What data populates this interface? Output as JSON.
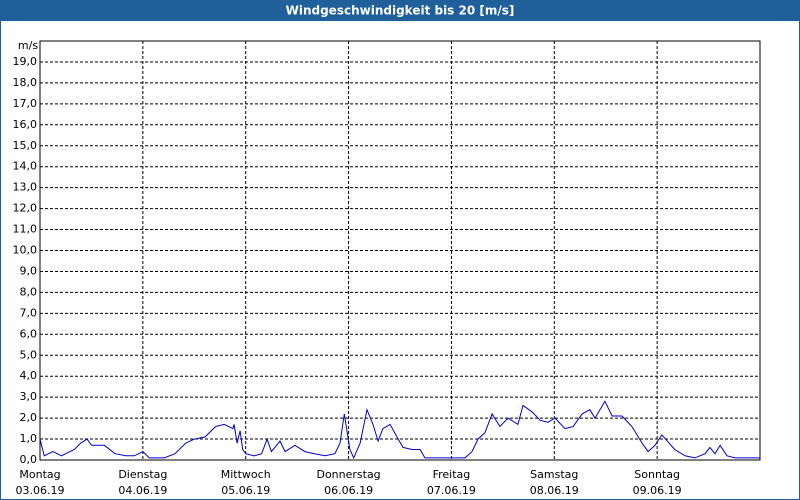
{
  "chart_data": {
    "type": "line",
    "title": "Windgeschwindigkeit bis 20 [m/s]",
    "y_label": "m/s",
    "xlim": [
      0,
      168
    ],
    "ylim": [
      0,
      20
    ],
    "xticks": [
      {
        "value": 0,
        "label": "Montag",
        "date": "03.06.19"
      },
      {
        "value": 24,
        "label": "Dienstag",
        "date": "04.06.19"
      },
      {
        "value": 48,
        "label": "Mittwoch",
        "date": "05.06.19"
      },
      {
        "value": 72,
        "label": "Donnerstag",
        "date": "06.06.19"
      },
      {
        "value": 96,
        "label": "Freitag",
        "date": "07.06.19"
      },
      {
        "value": 120,
        "label": "Samstag",
        "date": "08.06.19"
      },
      {
        "value": 144,
        "label": "Sonntag",
        "date": "09.06.19"
      }
    ],
    "yticks": [
      {
        "value": 0,
        "label": "0,0"
      },
      {
        "value": 1,
        "label": "1,0"
      },
      {
        "value": 2,
        "label": "2,0"
      },
      {
        "value": 3,
        "label": "3,0"
      },
      {
        "value": 4,
        "label": "4,0"
      },
      {
        "value": 5,
        "label": "5,0"
      },
      {
        "value": 6,
        "label": "6,0"
      },
      {
        "value": 7,
        "label": "7,0"
      },
      {
        "value": 8,
        "label": "8,0"
      },
      {
        "value": 9,
        "label": "9,0"
      },
      {
        "value": 10,
        "label": "10,0"
      },
      {
        "value": 11,
        "label": "11,0"
      },
      {
        "value": 12,
        "label": "12,0"
      },
      {
        "value": 13,
        "label": "13,0"
      },
      {
        "value": 14,
        "label": "14,0"
      },
      {
        "value": 15,
        "label": "15,0"
      },
      {
        "value": 16,
        "label": "16,0"
      },
      {
        "value": 17,
        "label": "17,0"
      },
      {
        "value": 18,
        "label": "18,0"
      },
      {
        "value": 19,
        "label": "19,0"
      }
    ],
    "grid": true,
    "x": [
      0,
      1,
      3,
      5,
      8,
      9.5,
      11,
      12,
      15,
      17.5,
      20,
      22,
      24,
      25.5,
      29,
      31.5,
      34,
      36,
      38.5,
      41,
      43,
      45,
      45.3,
      46,
      46.7,
      47.3,
      48,
      50,
      51.7,
      53,
      54,
      56,
      57.2,
      59.5,
      61.8,
      64,
      66.5,
      68.8,
      70,
      71,
      72.3,
      73.2,
      74.7,
      76.3,
      77.7,
      78.9,
      80,
      81.7,
      83.3,
      84.7,
      86.8,
      88.7,
      89.8,
      93.3,
      96.1,
      99.2,
      100.8,
      102.2,
      103.8,
      105.5,
      107.3,
      109.2,
      111.5,
      112.7,
      114.8,
      116.7,
      118.5,
      120.2,
      122.5,
      124.4,
      126.5,
      128.3,
      129.5,
      131.8,
      133.5,
      135.8,
      138.1,
      140.5,
      141.9,
      143.5,
      145.1,
      148.1,
      150.5,
      152.8,
      155.2,
      156.3,
      157.5,
      158.7,
      160.3,
      162.2,
      168
    ],
    "series": [
      {
        "color": "#0000cc",
        "values": [
          1.0,
          0.2,
          0.4,
          0.2,
          0.5,
          0.8,
          1.0,
          0.7,
          0.7,
          0.3,
          0.2,
          0.2,
          0.4,
          0.1,
          0.1,
          0.3,
          0.8,
          1.0,
          1.1,
          1.6,
          1.7,
          1.5,
          1.7,
          0.8,
          1.4,
          0.5,
          0.3,
          0.2,
          0.3,
          1.0,
          0.4,
          0.9,
          0.4,
          0.7,
          0.4,
          0.3,
          0.2,
          0.3,
          0.8,
          2.2,
          0.5,
          0.1,
          0.8,
          2.4,
          1.7,
          0.9,
          1.5,
          1.7,
          1.1,
          0.6,
          0.5,
          0.5,
          0.1,
          0.1,
          0.1,
          0.1,
          0.4,
          1.0,
          1.3,
          2.2,
          1.6,
          2.0,
          1.7,
          2.6,
          2.3,
          1.9,
          1.8,
          2.0,
          1.5,
          1.6,
          2.2,
          2.4,
          2.0,
          2.8,
          2.1,
          2.1,
          1.6,
          0.8,
          0.4,
          0.7,
          1.2,
          0.5,
          0.2,
          0.1,
          0.3,
          0.6,
          0.3,
          0.7,
          0.2,
          0.1,
          0.1
        ]
      }
    ]
  }
}
